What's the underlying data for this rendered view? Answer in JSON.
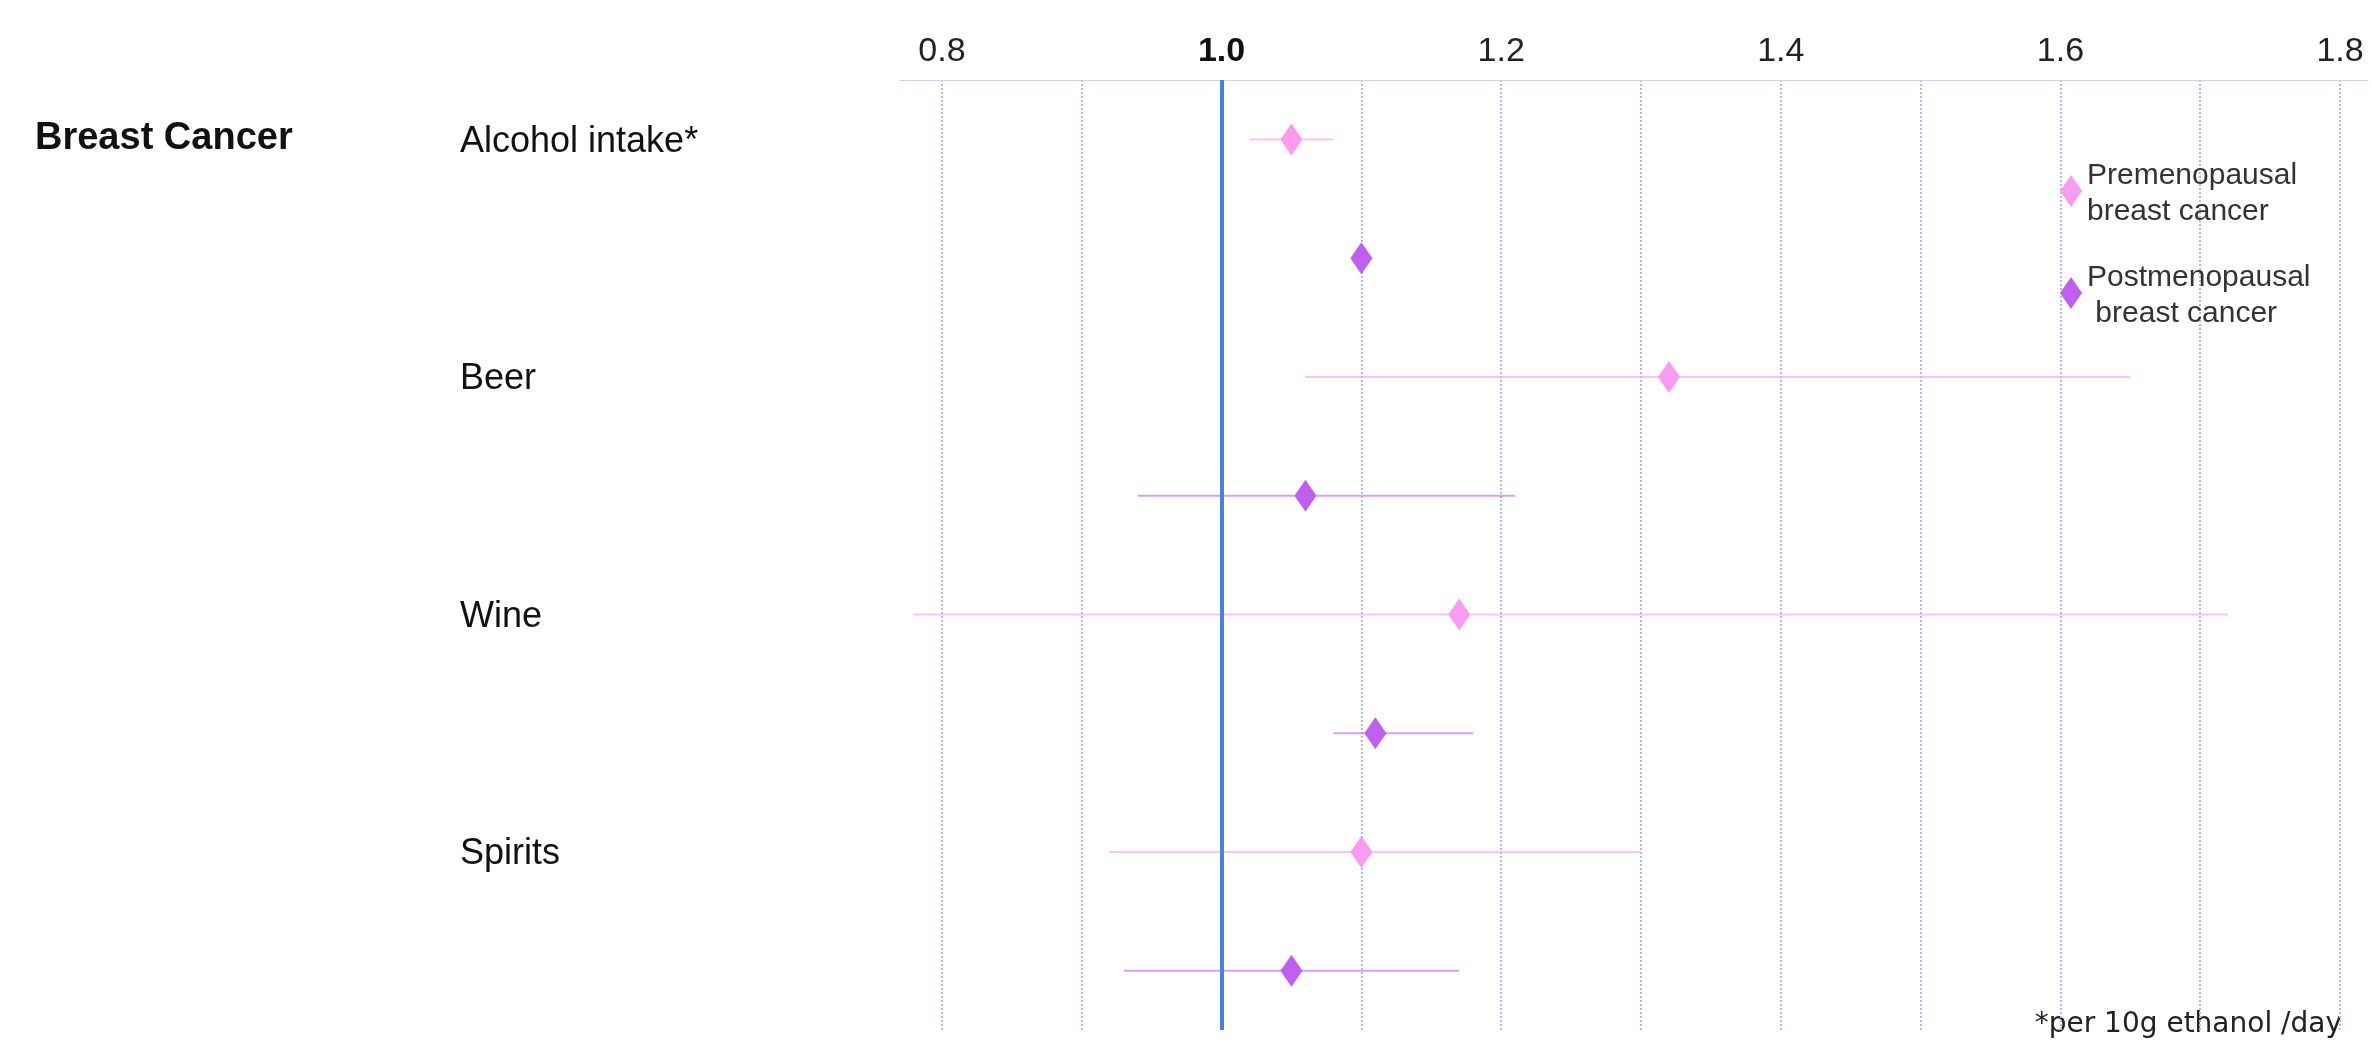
{
  "chart_data": {
    "type": "scatter",
    "title": "Breast Cancer",
    "orientation": "horizontal",
    "marker": "diamond",
    "categories": [
      "Alcohol intake*",
      null,
      "Beer",
      null,
      "Wine",
      null,
      "Spirits",
      null
    ],
    "series": [
      {
        "name": "Premenopausal breast cancer",
        "color": "#f99bf0",
        "values": [
          1.05,
          null,
          1.32,
          null,
          1.17,
          null,
          1.1,
          null
        ],
        "errors": [
          [
            1.02,
            1.08
          ],
          null,
          [
            1.06,
            1.65
          ],
          null,
          [
            0.78,
            1.72
          ],
          null,
          [
            0.92,
            1.3
          ],
          null
        ]
      },
      {
        "name": "Postmenopausal breast cancer",
        "color": "#bf5ff0",
        "values": [
          null,
          1.1,
          null,
          1.06,
          null,
          1.11,
          null,
          1.05
        ],
        "errors": [
          null,
          null,
          null,
          [
            0.94,
            1.21
          ],
          null,
          [
            1.08,
            1.18
          ],
          null,
          [
            0.93,
            1.17
          ]
        ]
      }
    ],
    "xlim": [
      0.77,
      1.82
    ],
    "xticks": [
      0.8,
      {
        "value": 0.9,
        "label": null
      },
      {
        "value": 1.0,
        "label": "1.0"
      },
      {
        "value": 1.1,
        "label": null
      },
      1.2,
      {
        "value": 1.3,
        "label": null
      },
      1.4,
      {
        "value": 1.5,
        "label": null
      },
      1.6,
      {
        "value": 1.7,
        "label": null
      },
      1.8
    ],
    "grid": "x",
    "legend": "top right",
    "ref_lines": [
      {
        "axis": "x",
        "value": 1.0,
        "color": "#4a7fe0"
      }
    ],
    "annotations": [
      "*per 10g ethanol /day"
    ]
  }
}
